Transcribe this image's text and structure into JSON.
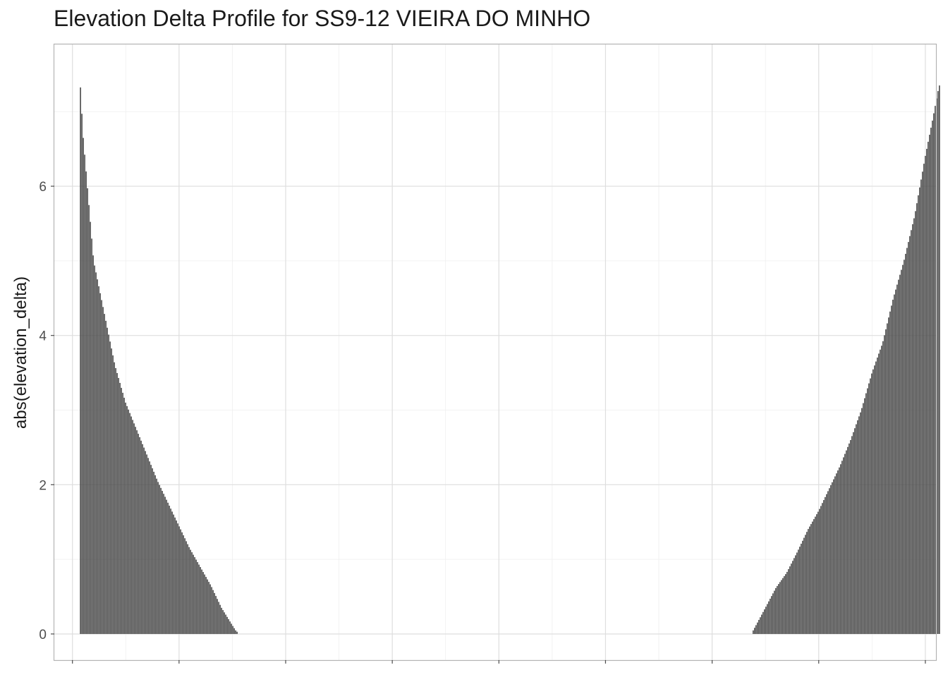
{
  "chart_data": {
    "type": "bar",
    "title": "Elevation Delta Profile for SS9-12 VIEIRA DO MINHO",
    "xlabel": "",
    "ylabel": "abs(elevation_delta)",
    "ylim": [
      -0.35,
      7.9
    ],
    "xlim": [
      -0.17,
      8.1
    ],
    "y_ticks": [
      0,
      2,
      4,
      6
    ],
    "x_ticks_count": 9,
    "grid": true,
    "legend": "none",
    "bar_color": "#4d4d4d",
    "segments": [
      {
        "name": "left",
        "x_start": 0.07,
        "x_end": 1.54,
        "anchors": [
          [
            0.07,
            7.5
          ],
          [
            0.1,
            6.7
          ],
          [
            0.2,
            5.0
          ],
          [
            0.3,
            4.3
          ],
          [
            0.4,
            3.6
          ],
          [
            0.5,
            3.1
          ],
          [
            0.6,
            2.75
          ],
          [
            0.7,
            2.4
          ],
          [
            0.8,
            2.05
          ],
          [
            0.9,
            1.75
          ],
          [
            1.0,
            1.45
          ],
          [
            1.1,
            1.15
          ],
          [
            1.2,
            0.9
          ],
          [
            1.3,
            0.65
          ],
          [
            1.4,
            0.35
          ],
          [
            1.5,
            0.12
          ],
          [
            1.54,
            0.03
          ]
        ]
      },
      {
        "name": "right",
        "x_start": 6.38,
        "x_end": 8.13,
        "anchors": [
          [
            6.38,
            0.03
          ],
          [
            6.5,
            0.35
          ],
          [
            6.6,
            0.62
          ],
          [
            6.7,
            0.82
          ],
          [
            6.8,
            1.1
          ],
          [
            6.9,
            1.4
          ],
          [
            7.0,
            1.65
          ],
          [
            7.1,
            1.95
          ],
          [
            7.2,
            2.25
          ],
          [
            7.3,
            2.6
          ],
          [
            7.4,
            3.0
          ],
          [
            7.5,
            3.5
          ],
          [
            7.6,
            3.9
          ],
          [
            7.7,
            4.5
          ],
          [
            7.8,
            5.0
          ],
          [
            7.9,
            5.6
          ],
          [
            8.0,
            6.4
          ],
          [
            8.07,
            6.9
          ],
          [
            8.13,
            7.35
          ]
        ]
      }
    ]
  }
}
